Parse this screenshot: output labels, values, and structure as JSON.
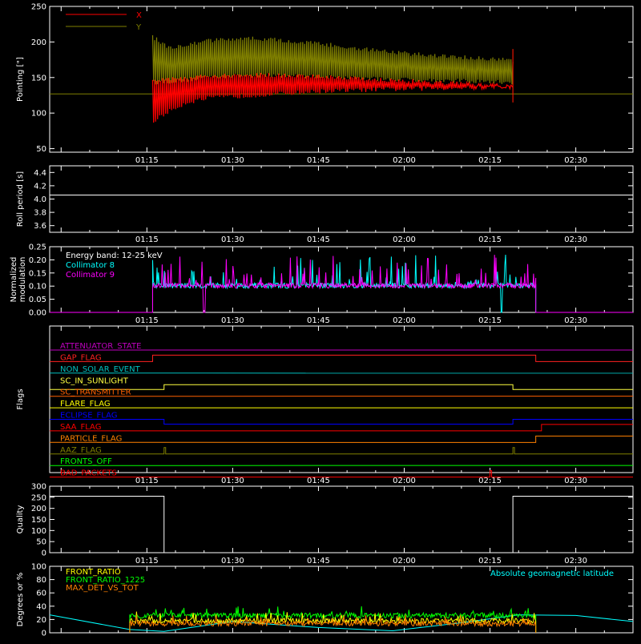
{
  "time_ticks": [
    "01:15",
    "01:30",
    "01:45",
    "02:00",
    "02:15",
    "02:30"
  ],
  "colors": {
    "x": "#ff0000",
    "y": "#7f7f00",
    "collimator8": "#00ffff",
    "collimator9": "#ff00ff",
    "axis": "#ffffff",
    "front_ratio": "#ffff00",
    "front_ratio_1225": "#00ff00",
    "max_det": "#ff8000",
    "geomag": "#00ffff"
  },
  "chart_data": [
    {
      "id": "pointing",
      "type": "line",
      "ylabel": "Pointing [\"]",
      "ylim": [
        45,
        250
      ],
      "yticks": [
        "50",
        "100",
        "150",
        "200",
        "250"
      ],
      "ytick_values": [
        50,
        100,
        150,
        200,
        250
      ],
      "series": [
        {
          "name": "X",
          "color": "#ff0000",
          "start": "01:16",
          "end": "02:19",
          "upper": [
            [
              0,
              150
            ],
            [
              5,
              152
            ],
            [
              10,
              155
            ],
            [
              15,
              156
            ],
            [
              20,
              157
            ],
            [
              30,
              155
            ],
            [
              40,
              150
            ],
            [
              50,
              146
            ],
            [
              63,
              140
            ]
          ],
          "lower": [
            [
              0,
              85
            ],
            [
              3,
              100
            ],
            [
              6,
              112
            ],
            [
              10,
              118
            ],
            [
              20,
              123
            ],
            [
              30,
              128
            ],
            [
              40,
              130
            ],
            [
              50,
              132
            ],
            [
              63,
              134
            ]
          ]
        },
        {
          "name": "Y",
          "color": "#7f7f00",
          "start": "01:16",
          "end": "02:19",
          "upper": [
            [
              0,
              210
            ],
            [
              3,
              195
            ],
            [
              6,
              200
            ],
            [
              10,
              205
            ],
            [
              15,
              208
            ],
            [
              20,
              207
            ],
            [
              30,
              200
            ],
            [
              40,
              190
            ],
            [
              50,
              183
            ],
            [
              63,
              178
            ]
          ],
          "lower": [
            [
              0,
              140
            ],
            [
              5,
              142
            ],
            [
              10,
              148
            ],
            [
              20,
              150
            ],
            [
              30,
              148
            ],
            [
              40,
              145
            ],
            [
              50,
              143
            ],
            [
              63,
              140
            ]
          ]
        }
      ],
      "baseline": 127
    },
    {
      "id": "roll_period",
      "type": "line",
      "ylabel": "Roll period [s]",
      "ylim": [
        3.5,
        4.5
      ],
      "yticks": [
        "3.6",
        "3.8",
        "4.0",
        "4.2",
        "4.4"
      ],
      "ytick_values": [
        3.6,
        3.8,
        4.0,
        4.2,
        4.4
      ],
      "series": [
        {
          "name": "",
          "values_constant": 4.06
        }
      ]
    },
    {
      "id": "modulation",
      "type": "line",
      "ylabel": "Normalized\nmodulation",
      "ylim": [
        0,
        0.25
      ],
      "yticks": [
        "0.00",
        "0.05",
        "0.10",
        "0.15",
        "0.20",
        "0.25"
      ],
      "ytick_values": [
        0,
        0.05,
        0.1,
        0.15,
        0.2,
        0.25
      ],
      "legend": [
        "Energy band: 12-25 keV",
        "Collimator 8",
        "Collimator 9"
      ],
      "series": [
        {
          "name": "Collimator 8",
          "color": "#00ffff",
          "start": "01:16",
          "end": "02:23",
          "base": 0.1,
          "dip": "02:17"
        },
        {
          "name": "Collimator 9",
          "color": "#ff00ff",
          "start": "01:16",
          "end": "02:23",
          "base": 0.1,
          "dip": "01:25"
        }
      ]
    },
    {
      "id": "flags",
      "type": "line",
      "ylabel": "Flags",
      "series": [
        {
          "name": "ATTENUATOR_STATE",
          "color": "#c000c0",
          "steps": []
        },
        {
          "name": "GAP_FLAG",
          "color": "#ff2020",
          "steps": [
            [
              "01:16",
              "02:23"
            ]
          ]
        },
        {
          "name": "NON_SOLAR_EVENT",
          "color": "#00c0c0",
          "steps": []
        },
        {
          "name": "SC_IN_SUNLIGHT",
          "color": "#ffff40",
          "steps": [
            [
              "01:18",
              "02:19"
            ]
          ],
          "inverted": true
        },
        {
          "name": "SC_TRANSMITTER",
          "color": "#ff6000",
          "steps": []
        },
        {
          "name": "FLARE_FLAG",
          "color": "#ffff00",
          "steps": []
        },
        {
          "name": "ECLIPSE_FLAG",
          "color": "#0000ff",
          "steps": [
            [
              "01:18",
              "02:19"
            ]
          ],
          "inverted_low": true
        },
        {
          "name": "SAA_FLAG",
          "color": "#ff0000",
          "steps": [
            [
              "02:24",
              "02:40"
            ]
          ]
        },
        {
          "name": "PARTICLE_FLAG",
          "color": "#ff8000",
          "steps": [
            [
              "02:23",
              "02:40"
            ]
          ]
        },
        {
          "name": "AAZ_FLAG",
          "color": "#808000",
          "spikes": [
            "01:18",
            "02:19"
          ]
        },
        {
          "name": "FRONTS_OFF",
          "color": "#00ff00",
          "steps": []
        },
        {
          "name": "BAD_PACKETS",
          "color": "#ff0000",
          "spikes": [
            "02:15"
          ]
        }
      ]
    },
    {
      "id": "quality",
      "type": "line",
      "ylabel": "Quality",
      "ylim": [
        0,
        300
      ],
      "yticks": [
        "0",
        "50",
        "100",
        "150",
        "200",
        "250",
        "300"
      ],
      "ytick_values": [
        0,
        50,
        100,
        150,
        200,
        250,
        300
      ],
      "series": [
        {
          "name": "",
          "high": 255,
          "low_start": "01:18",
          "low_end": "02:19"
        }
      ]
    },
    {
      "id": "ratios",
      "type": "line",
      "ylabel": "Degrees or %",
      "ylim": [
        0,
        100
      ],
      "yticks": [
        "0",
        "20",
        "40",
        "60",
        "80",
        "100"
      ],
      "ytick_values": [
        0,
        20,
        40,
        60,
        80,
        100
      ],
      "legend": [
        "FRONT_RATIO",
        "FRONT_RATIO_1225",
        "MAX_DET_VS_TOT"
      ],
      "legend_right": "Absolute geomagnetic latitude",
      "series": [
        {
          "name": "FRONT_RATIO",
          "color": "#ffff00",
          "start": "01:12",
          "end": "02:23",
          "base": 18
        },
        {
          "name": "FRONT_RATIO_1225",
          "color": "#00ff00",
          "start": "01:12",
          "end": "02:23",
          "base": 26
        },
        {
          "name": "MAX_DET_VS_TOT",
          "color": "#ff8000",
          "start": "01:12",
          "end": "02:23",
          "base": 14
        },
        {
          "name": "Absolute geomagnetic latitude",
          "color": "#00ffff",
          "points": [
            [
              "00:58",
              27
            ],
            [
              "01:12",
              5
            ],
            [
              "01:18",
              2
            ],
            [
              "01:30",
              17
            ],
            [
              "01:45",
              8
            ],
            [
              "01:58",
              3
            ],
            [
              "02:10",
              15
            ],
            [
              "02:20",
              27
            ],
            [
              "02:30",
              26
            ],
            [
              "02:40",
              17
            ]
          ]
        }
      ]
    }
  ]
}
